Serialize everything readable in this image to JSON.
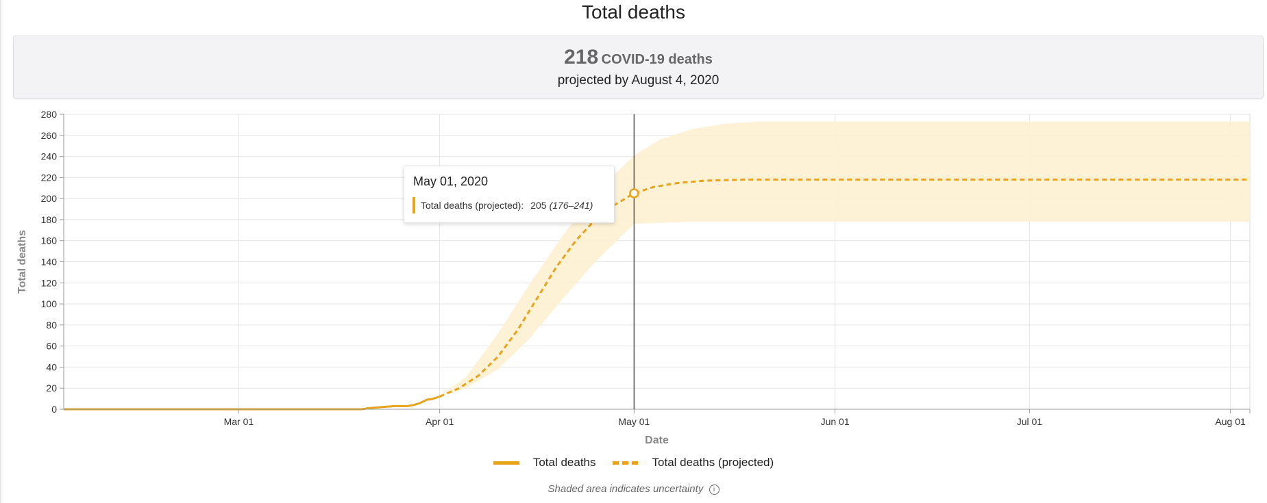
{
  "header": {
    "title": "Total deaths"
  },
  "summary": {
    "count": "218",
    "unit": "COVID-19 deaths",
    "subtitle": "projected by August 4, 2020"
  },
  "tooltip": {
    "date": "May 01, 2020",
    "series_label": "Total deaths (projected):",
    "value": "205",
    "range": "(176–241)"
  },
  "legend": {
    "items": [
      "Total deaths",
      "Total deaths (projected)"
    ]
  },
  "note": {
    "text": "Shaded area indicates uncertainty"
  },
  "icons": {
    "info": "info-circle-icon"
  },
  "colors": {
    "series": "#e8a31b",
    "band": "#fdf0d2",
    "cursor": "#555555"
  },
  "chart_data": {
    "type": "line",
    "xlabel": "Date",
    "ylabel": "Total deaths",
    "xlim": [
      "2020-02-03",
      "2020-08-04"
    ],
    "ylim": [
      0,
      280
    ],
    "y_ticks": [
      0,
      20,
      40,
      60,
      80,
      100,
      120,
      140,
      160,
      180,
      200,
      220,
      240,
      260,
      280
    ],
    "x_ticks": [
      {
        "date": "2020-03-01",
        "label": "Mar 01"
      },
      {
        "date": "2020-04-01",
        "label": "Apr 01"
      },
      {
        "date": "2020-05-01",
        "label": "May 01"
      },
      {
        "date": "2020-06-01",
        "label": "Jun 01"
      },
      {
        "date": "2020-07-01",
        "label": "Jul 01"
      },
      {
        "date": "2020-08-01",
        "label": "Aug 01"
      }
    ],
    "grid": true,
    "legend_position": "bottom",
    "series": [
      {
        "name": "Total deaths",
        "style": "solid",
        "points": [
          [
            "2020-02-03",
            0
          ],
          [
            "2020-03-01",
            0
          ],
          [
            "2020-03-20",
            0
          ],
          [
            "2020-03-21",
            1
          ],
          [
            "2020-03-23",
            2
          ],
          [
            "2020-03-25",
            3
          ],
          [
            "2020-03-27",
            3
          ],
          [
            "2020-03-28",
            4
          ],
          [
            "2020-03-29",
            6
          ],
          [
            "2020-03-30",
            9
          ],
          [
            "2020-03-31",
            10
          ],
          [
            "2020-04-01",
            12
          ]
        ]
      },
      {
        "name": "Total deaths (projected)",
        "style": "dashed",
        "points": [
          [
            "2020-04-01",
            12
          ],
          [
            "2020-04-04",
            20
          ],
          [
            "2020-04-07",
            32
          ],
          [
            "2020-04-10",
            50
          ],
          [
            "2020-04-13",
            75
          ],
          [
            "2020-04-16",
            105
          ],
          [
            "2020-04-19",
            135
          ],
          [
            "2020-04-22",
            160
          ],
          [
            "2020-04-25",
            180
          ],
          [
            "2020-04-28",
            194
          ],
          [
            "2020-05-01",
            205
          ],
          [
            "2020-05-04",
            211
          ],
          [
            "2020-05-08",
            215
          ],
          [
            "2020-05-12",
            217
          ],
          [
            "2020-05-18",
            218
          ],
          [
            "2020-08-04",
            218
          ]
        ]
      }
    ],
    "uncertainty_band": {
      "dates": [
        "2020-04-01",
        "2020-04-05",
        "2020-04-10",
        "2020-04-15",
        "2020-04-20",
        "2020-04-25",
        "2020-05-01",
        "2020-05-05",
        "2020-05-10",
        "2020-05-15",
        "2020-05-20",
        "2020-06-01",
        "2020-08-04"
      ],
      "lower": [
        12,
        20,
        38,
        68,
        105,
        140,
        176,
        177,
        178,
        178,
        178,
        178,
        178
      ],
      "upper": [
        13,
        30,
        72,
        120,
        165,
        205,
        241,
        256,
        266,
        271,
        273,
        273,
        273
      ]
    },
    "highlight": {
      "date": "2020-05-01",
      "value": 205
    }
  }
}
